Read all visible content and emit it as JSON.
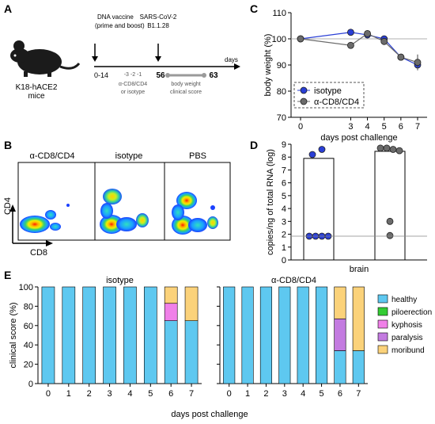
{
  "colors": {
    "isotype": "#2a3fd6",
    "depleted": "#6b6b6b",
    "healthy": "#5ec8f0",
    "piloerection": "#33cc33",
    "kyphosis": "#f080e8",
    "paralysis": "#c37be0",
    "moribund": "#fbd27a"
  },
  "panel_a": {
    "letter": "A",
    "mouse_label": [
      "K18-hACE2",
      "mice"
    ],
    "vaccine_label": [
      "DNA vaccine",
      "(prime and boost)"
    ],
    "virus_label": [
      "SARS-CoV-2",
      "B1.1.28"
    ],
    "t0": "0-14",
    "t1": "56",
    "t2": "63",
    "days": "days",
    "depletion_days": "-3 -2 -1",
    "depletion_label": [
      "α-CD8/CD4",
      "or isotype"
    ],
    "monitor_label": [
      "body weight",
      "clinical score"
    ]
  },
  "panel_b": {
    "letter": "B",
    "titles": [
      "α-CD8/CD4",
      "isotype",
      "PBS"
    ],
    "ylabel": "CD4",
    "xlabel": "CD8"
  },
  "chart_data": [
    {
      "panel": "C",
      "type": "line",
      "ylabel": "body weight (%)",
      "xlabel": "days post challenge",
      "x": [
        0,
        3,
        4,
        5,
        6,
        7
      ],
      "ylim": [
        70,
        110
      ],
      "yticks": [
        70,
        80,
        90,
        100,
        110
      ],
      "reference_line": 100,
      "legend_position": "bottom-left",
      "series": [
        {
          "name": "isotype",
          "values": [
            100,
            102.5,
            101.5,
            100,
            93,
            90
          ],
          "error": [
            0.5,
            1,
            1,
            1,
            1,
            2
          ]
        },
        {
          "name": "α-CD8/CD4",
          "values": [
            100,
            97.5,
            102,
            99,
            93,
            91
          ],
          "error": [
            0.5,
            1,
            1,
            1,
            1,
            3
          ]
        }
      ]
    },
    {
      "panel": "D",
      "type": "bar",
      "ylabel": "copies/ng of total RNA (log)",
      "xlabel": "brain",
      "ylim": [
        0,
        9
      ],
      "yticks": [
        0,
        1,
        2,
        3,
        4,
        5,
        6,
        7,
        8,
        9
      ],
      "detection_limit": 1.85,
      "series": [
        {
          "name": "isotype",
          "mean": 7.9,
          "points": [
            8.2,
            8.6,
            1.85,
            1.85,
            1.85,
            1.85
          ]
        },
        {
          "name": "α-CD8/CD4",
          "mean": 8.45,
          "points": [
            8.7,
            8.7,
            8.6,
            8.5,
            3.0,
            1.9
          ]
        }
      ]
    },
    {
      "panel": "E",
      "type": "bar",
      "stacked": true,
      "ylabel": "clinical score (%)",
      "xlabel": "days post challenge",
      "ylim": [
        0,
        100
      ],
      "yticks": [
        0,
        20,
        40,
        60,
        80,
        100
      ],
      "categories": [
        "0",
        "1",
        "2",
        "3",
        "4",
        "5",
        "6",
        "7"
      ],
      "legend": [
        "healthy",
        "piloerection",
        "kyphosis",
        "paralysis",
        "moribund"
      ],
      "groups": [
        {
          "title": "isotype",
          "series": [
            {
              "name": "healthy",
              "values": [
                100,
                100,
                100,
                100,
                100,
                100,
                65,
                65
              ]
            },
            {
              "name": "piloerection",
              "values": [
                0,
                0,
                0,
                0,
                0,
                0,
                0,
                0
              ]
            },
            {
              "name": "kyphosis",
              "values": [
                0,
                0,
                0,
                0,
                0,
                0,
                18,
                0
              ]
            },
            {
              "name": "paralysis",
              "values": [
                0,
                0,
                0,
                0,
                0,
                0,
                0,
                0
              ]
            },
            {
              "name": "moribund",
              "values": [
                0,
                0,
                0,
                0,
                0,
                0,
                17,
                35
              ]
            }
          ]
        },
        {
          "title": "α-CD8/CD4",
          "series": [
            {
              "name": "healthy",
              "values": [
                100,
                100,
                100,
                100,
                100,
                100,
                34,
                34
              ]
            },
            {
              "name": "piloerection",
              "values": [
                0,
                0,
                0,
                0,
                0,
                0,
                0,
                0
              ]
            },
            {
              "name": "kyphosis",
              "values": [
                0,
                0,
                0,
                0,
                0,
                0,
                0,
                0
              ]
            },
            {
              "name": "paralysis",
              "values": [
                0,
                0,
                0,
                0,
                0,
                0,
                33,
                0
              ]
            },
            {
              "name": "moribund",
              "values": [
                0,
                0,
                0,
                0,
                0,
                0,
                33,
                66
              ]
            }
          ]
        }
      ]
    }
  ]
}
